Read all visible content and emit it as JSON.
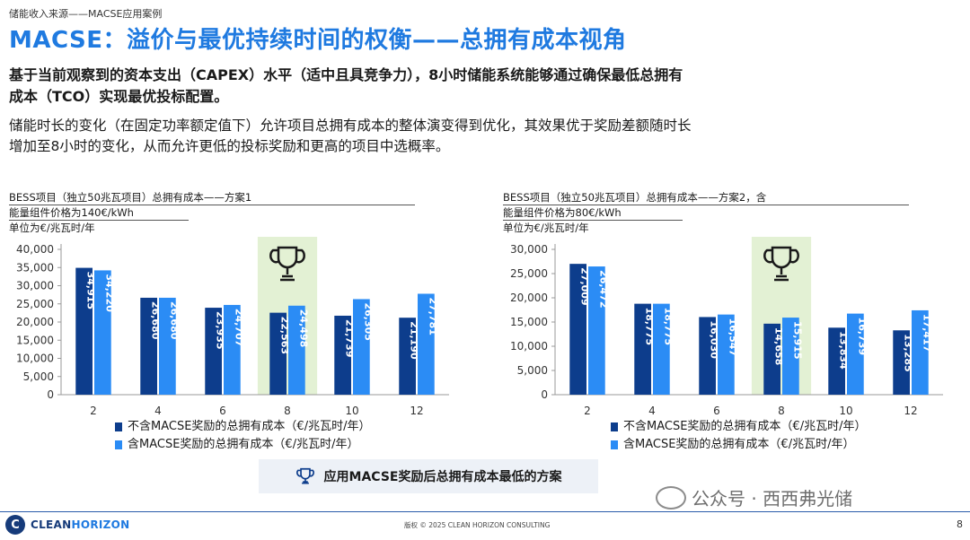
{
  "breadcrumb": "储能收入来源——MACSE应用案例",
  "title": "MACSE：溢价与最优持续时间的权衡——总拥有成本视角",
  "subtitle_bold": "基于当前观察到的资本支出（CAPEX）水平（适中且具竞争力），8小时储能系统能够通过确保最低总拥有成本（TCO）实现最优投标配置。",
  "subtitle_text": "储能时长的变化（在固定功率额定值下）允许项目总拥有成本的整体演变得到优化，其效果优于奖励差额随时长增加至8小时的变化，从而允许更低的投标奖励和更高的项目中选概率。",
  "colors": {
    "dark": "#0d3d8c",
    "light": "#2b8cf5",
    "highlight": "#e3f1d4",
    "title": "#1f7ae0"
  },
  "chart_data": [
    {
      "type": "bar",
      "title_line1": "BESS项目（独立50兆瓦项目）总拥有成本——方案1",
      "title_line2": "能量组件价格为140€/kWh",
      "unit_label": "单位为€/兆瓦时/年",
      "categories": [
        "2",
        "4",
        "6",
        "8",
        "10",
        "12"
      ],
      "ylim": [
        0,
        40000
      ],
      "yticks": [
        0,
        5000,
        10000,
        15000,
        20000,
        25000,
        30000,
        35000,
        40000
      ],
      "ytick_labels": [
        "0",
        "5,000",
        "10,000",
        "15,000",
        "20,000",
        "25,000",
        "30,000",
        "35,000",
        "40,000"
      ],
      "highlight_category": "8",
      "series": [
        {
          "name": "不含MACSE奖励的总拥有成本（€/兆瓦时/年）",
          "values": [
            34915,
            26680,
            23935,
            22563,
            21739,
            21190
          ],
          "labels": [
            "34,915",
            "26,680",
            "23,935",
            "22,563",
            "21,739",
            "21,190"
          ]
        },
        {
          "name": "含MACSE奖励的总拥有成本（€/兆瓦时/年）",
          "values": [
            34220,
            26680,
            24707,
            24498,
            26305,
            27781
          ],
          "labels": [
            "34,220",
            "26,680",
            "24,707",
            "24,498",
            "26,305",
            "27,781"
          ]
        }
      ]
    },
    {
      "type": "bar",
      "title_line1": "BESS项目（独立50兆瓦项目）总拥有成本——方案2，含",
      "title_line2": "能量组件价格为80€/kWh",
      "unit_label": "单位为€/兆瓦时/年",
      "categories": [
        "2",
        "4",
        "6",
        "8",
        "10",
        "12"
      ],
      "ylim": [
        0,
        30000
      ],
      "yticks": [
        0,
        5000,
        10000,
        15000,
        20000,
        25000,
        30000
      ],
      "ytick_labels": [
        "0",
        "5,000",
        "10,000",
        "15,000",
        "20,000",
        "25,000",
        "30,000"
      ],
      "highlight_category": "8",
      "series": [
        {
          "name": "不含MACSE奖励的总拥有成本（€/兆瓦时/年）",
          "values": [
            27009,
            18775,
            16030,
            14658,
            13834,
            13285
          ],
          "labels": [
            "27,009",
            "18,775",
            "16,030",
            "14,658",
            "13,834",
            "13,285"
          ]
        },
        {
          "name": "含MACSE奖励的总拥有成本（€/兆瓦时/年）",
          "values": [
            26472,
            18775,
            16547,
            15915,
            16739,
            17417
          ],
          "labels": [
            "26,472",
            "18,775",
            "16,547",
            "15,915",
            "16,739",
            "17,417"
          ]
        }
      ]
    }
  ],
  "callout": {
    "text": "应用MACSE奖励后总拥有成本最低的方案",
    "icon": "trophy-icon"
  },
  "footer": {
    "logo_text_a": "CLEAN",
    "logo_text_b": "HORIZON",
    "copyright": "版权 © 2025 CLEAN HORIZON CONSULTING",
    "page": "8"
  },
  "watermark": "公众号 · 西西弗光储"
}
